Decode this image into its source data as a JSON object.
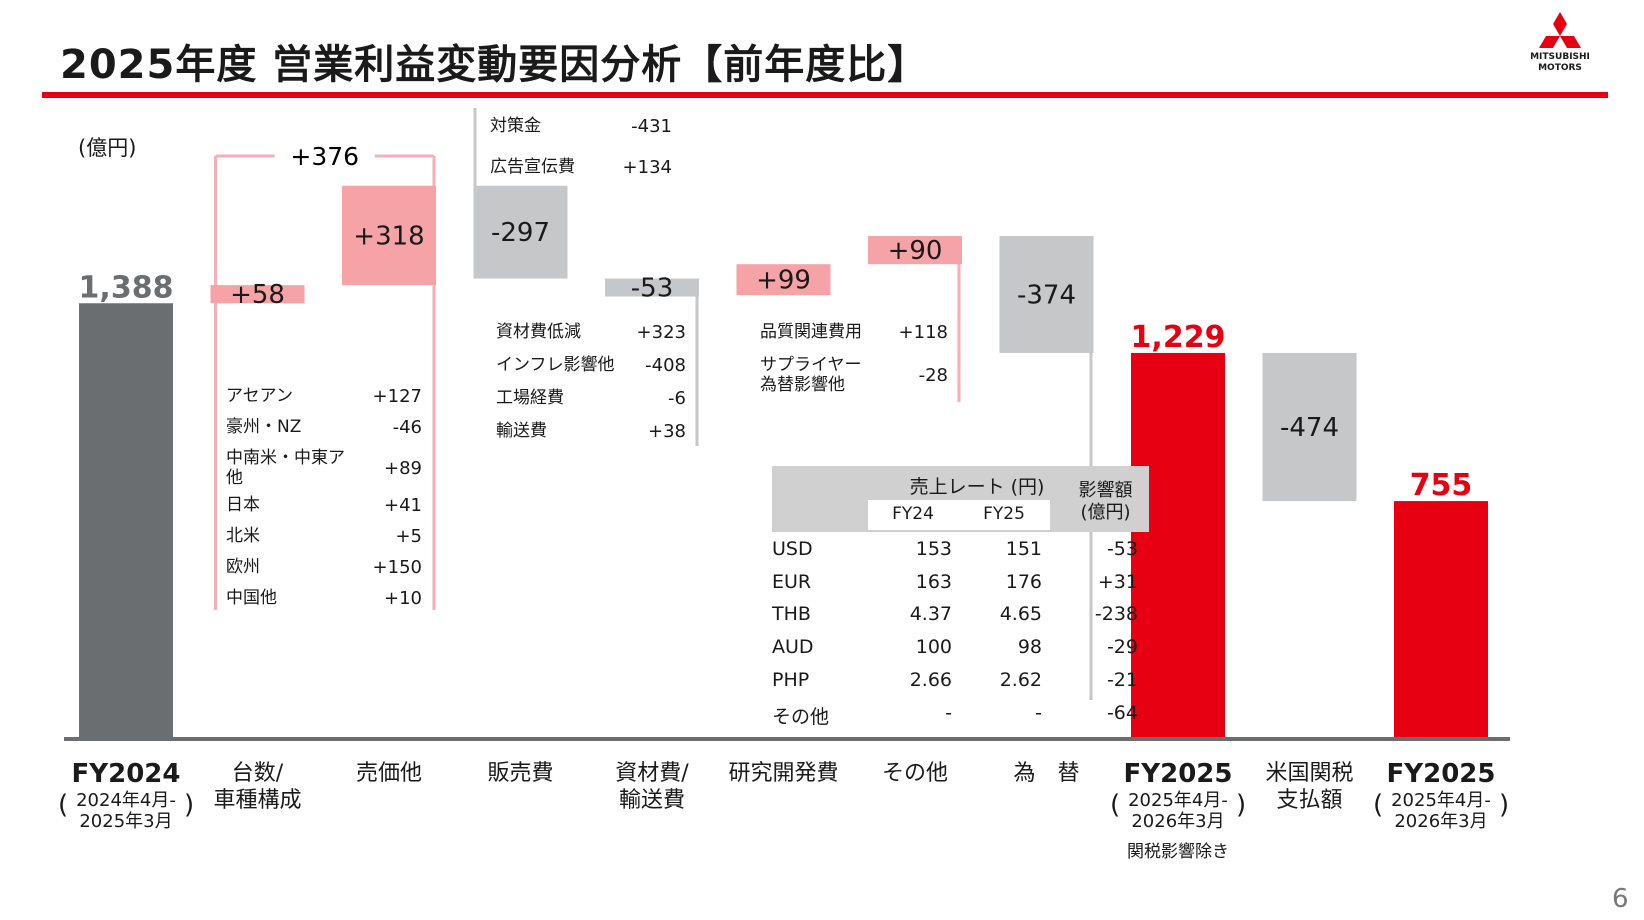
{
  "page": {
    "title": "2025年度 営業利益変動要因分析【前年度比】",
    "unit": "(億円)",
    "page_number": "6",
    "logo_text_1": "MITSUBISHI",
    "logo_text_2": "MOTORS",
    "colors": {
      "accent_red": "#e60012",
      "gray_bar": "#6b6e70",
      "light_gray": "#c6c7c9",
      "pink": "#f5a3a6",
      "pink_line": "#f4b0b4"
    }
  },
  "chart_data": {
    "type": "bar",
    "subtype": "waterfall",
    "unit": "(億円)",
    "categories": [
      {
        "key": "fy2024",
        "label_lines": [
          "FY2024"
        ],
        "sub_lines": [
          "2024年4月-",
          "2025年3月"
        ],
        "bold": true
      },
      {
        "key": "volume",
        "label_lines": [
          "台数/",
          "車種構成"
        ]
      },
      {
        "key": "price",
        "label_lines": [
          "売価他"
        ]
      },
      {
        "key": "selling",
        "label_lines": [
          "販売費"
        ]
      },
      {
        "key": "material",
        "label_lines": [
          "資材費/",
          "輸送費"
        ]
      },
      {
        "key": "rnd",
        "label_lines": [
          "研究開発費"
        ]
      },
      {
        "key": "other",
        "label_lines": [
          "その他"
        ]
      },
      {
        "key": "fx",
        "label_lines": [
          "為　替"
        ]
      },
      {
        "key": "fy2025_ex",
        "label_lines": [
          "FY2025"
        ],
        "sub_lines": [
          "2025年4月-",
          "2026年3月"
        ],
        "note": "関税影響除き",
        "bold": true
      },
      {
        "key": "tariff",
        "label_lines": [
          "米国関税",
          "支払額"
        ]
      },
      {
        "key": "fy2025",
        "label_lines": [
          "FY2025"
        ],
        "sub_lines": [
          "2025年4月-",
          "2026年3月"
        ],
        "bold": true
      }
    ],
    "bars": [
      {
        "key": "fy2024",
        "kind": "total",
        "start": 0,
        "end": 1388,
        "label": "1,388",
        "color": "gray"
      },
      {
        "key": "volume",
        "kind": "delta",
        "start": 1388,
        "end": 1446,
        "label": "+58",
        "color": "pink"
      },
      {
        "key": "price",
        "kind": "delta",
        "start": 1446,
        "end": 1764,
        "label": "+318",
        "color": "pink"
      },
      {
        "key": "selling",
        "kind": "delta",
        "start": 1764,
        "end": 1467,
        "label": "-297",
        "color": "lightgray"
      },
      {
        "key": "material",
        "kind": "delta",
        "start": 1467,
        "end": 1414,
        "label": "-53",
        "color": "lightgray"
      },
      {
        "key": "rnd",
        "kind": "delta",
        "start": 1414,
        "end": 1513,
        "label": "+99",
        "color": "pink"
      },
      {
        "key": "other",
        "kind": "delta",
        "start": 1513,
        "end": 1603,
        "label": "+90",
        "color": "pink"
      },
      {
        "key": "fx",
        "kind": "delta",
        "start": 1603,
        "end": 1229,
        "label": "-374",
        "color": "lightgray"
      },
      {
        "key": "fy2025_ex",
        "kind": "total",
        "start": 0,
        "end": 1229,
        "label": "1,229",
        "color": "red"
      },
      {
        "key": "tariff",
        "kind": "delta",
        "start": 1229,
        "end": 755,
        "label": "-474",
        "color": "lightgray"
      },
      {
        "key": "fy2025",
        "kind": "total",
        "start": 0,
        "end": 755,
        "label": "755",
        "color": "red"
      }
    ],
    "bracket": {
      "label": "+376",
      "from": "volume",
      "to": "price"
    },
    "breakdowns": {
      "volume": [
        {
          "label": "アセアン",
          "value": "+127"
        },
        {
          "label": "豪州・NZ",
          "value": "-46"
        },
        {
          "label": "中南米・中東ア\n他",
          "value": "+89"
        },
        {
          "label": "日本",
          "value": "+41"
        },
        {
          "label": "北米",
          "value": "+5"
        },
        {
          "label": "欧州",
          "value": "+150"
        },
        {
          "label": "中国他",
          "value": "+10"
        }
      ],
      "selling": [
        {
          "label": "対策金",
          "value": "-431"
        },
        {
          "label": "広告宣伝費",
          "value": "+134"
        }
      ],
      "material": [
        {
          "label": "資材費低減",
          "value": "+323"
        },
        {
          "label": "インフレ影響他",
          "value": "-408"
        },
        {
          "label": "工場経費",
          "value": "-6"
        },
        {
          "label": "輸送費",
          "value": "+38"
        }
      ],
      "other": [
        {
          "label": "品質関連費用",
          "value": "+118"
        },
        {
          "label": "サプライヤー\n為替影響他",
          "value": "-28"
        }
      ]
    },
    "fx_table": {
      "header_rate": "売上レート (円)",
      "header_fy24": "FY24",
      "header_fy25": "FY25",
      "header_impact_1": "影響額",
      "header_impact_2": "(億円)",
      "rows": [
        {
          "currency": "USD",
          "fy24": "153",
          "fy25": "151",
          "impact": "-53"
        },
        {
          "currency": "EUR",
          "fy24": "163",
          "fy25": "176",
          "impact": "+31"
        },
        {
          "currency": "THB",
          "fy24": "4.37",
          "fy25": "4.65",
          "impact": "-238"
        },
        {
          "currency": "AUD",
          "fy24": "100",
          "fy25": "98",
          "impact": "-29"
        },
        {
          "currency": "PHP",
          "fy24": "2.66",
          "fy25": "2.62",
          "impact": "-21"
        },
        {
          "currency": "その他",
          "fy24": "-",
          "fy25": "-",
          "impact": "-64"
        }
      ]
    }
  }
}
